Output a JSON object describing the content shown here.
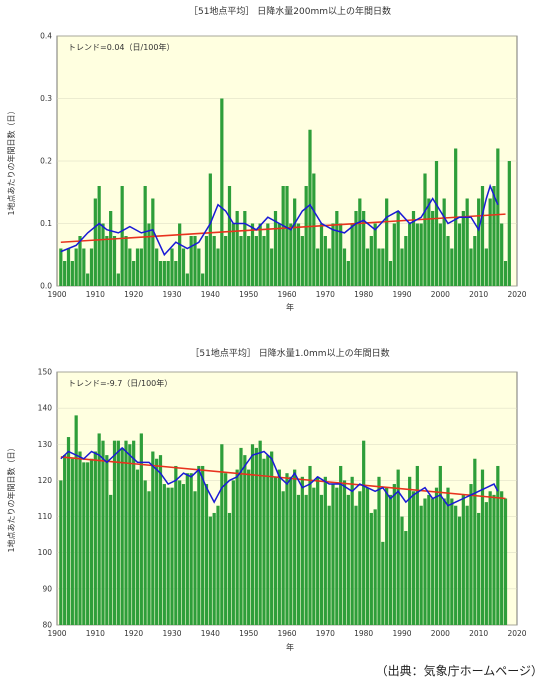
{
  "source": "（出典：気象庁ホームページ）",
  "chart_data": [
    {
      "type": "bar",
      "title": "［51地点平均］ 日降水量200mm以上の年間日数",
      "ylabel": "1地点あたりの年間日数（日）",
      "xlabel": "年",
      "annotation": "トレンド=0.04（日/100年）",
      "xlim": [
        1900,
        2020
      ],
      "ylim": [
        0,
        0.4
      ],
      "xticks": [
        "1900",
        "1910",
        "1920",
        "1930",
        "1940",
        "1950",
        "1960",
        "1970",
        "1980",
        "1990",
        "2000",
        "2010",
        "2020"
      ],
      "yticks": [
        "0.0",
        "0.1",
        "0.2",
        "0.3",
        "0.4"
      ],
      "x_start": 1901,
      "values": [
        0.06,
        0.04,
        0.06,
        0.04,
        0.06,
        0.08,
        0.06,
        0.02,
        0.06,
        0.14,
        0.16,
        0.1,
        0.08,
        0.12,
        0.08,
        0.02,
        0.16,
        0.08,
        0.06,
        0.04,
        0.06,
        0.06,
        0.16,
        0.1,
        0.14,
        0.06,
        0.04,
        0.04,
        0.04,
        0.06,
        0.04,
        0.1,
        0.06,
        0.02,
        0.08,
        0.08,
        0.06,
        0.02,
        0.08,
        0.18,
        0.08,
        0.06,
        0.3,
        0.08,
        0.16,
        0.1,
        0.12,
        0.08,
        0.12,
        0.08,
        0.1,
        0.08,
        0.1,
        0.08,
        0.1,
        0.06,
        0.12,
        0.1,
        0.16,
        0.16,
        0.1,
        0.14,
        0.1,
        0.08,
        0.16,
        0.25,
        0.18,
        0.06,
        0.1,
        0.08,
        0.06,
        0.1,
        0.12,
        0.1,
        0.06,
        0.04,
        0.1,
        0.12,
        0.14,
        0.12,
        0.06,
        0.08,
        0.1,
        0.06,
        0.06,
        0.14,
        0.04,
        0.1,
        0.12,
        0.06,
        0.08,
        0.1,
        0.12,
        0.1,
        0.1,
        0.18,
        0.14,
        0.12,
        0.2,
        0.1,
        0.14,
        0.08,
        0.06,
        0.22,
        0.1,
        0.12,
        0.14,
        0.06,
        0.08,
        0.14,
        0.16,
        0.06,
        0.14,
        0.16,
        0.22,
        0.1,
        0.04,
        0.2
      ],
      "moving_average": [
        [
          1901,
          0.055
        ],
        [
          1905,
          0.065
        ],
        [
          1908,
          0.085
        ],
        [
          1911,
          0.1
        ],
        [
          1913,
          0.09
        ],
        [
          1916,
          0.085
        ],
        [
          1919,
          0.095
        ],
        [
          1922,
          0.085
        ],
        [
          1925,
          0.09
        ],
        [
          1928,
          0.05
        ],
        [
          1931,
          0.07
        ],
        [
          1934,
          0.06
        ],
        [
          1937,
          0.07
        ],
        [
          1940,
          0.1
        ],
        [
          1942,
          0.13
        ],
        [
          1944,
          0.12
        ],
        [
          1946,
          0.1
        ],
        [
          1949,
          0.1
        ],
        [
          1952,
          0.09
        ],
        [
          1955,
          0.11
        ],
        [
          1958,
          0.1
        ],
        [
          1961,
          0.09
        ],
        [
          1964,
          0.12
        ],
        [
          1966,
          0.13
        ],
        [
          1969,
          0.1
        ],
        [
          1972,
          0.09
        ],
        [
          1975,
          0.085
        ],
        [
          1978,
          0.1
        ],
        [
          1980,
          0.105
        ],
        [
          1983,
          0.09
        ],
        [
          1986,
          0.11
        ],
        [
          1989,
          0.12
        ],
        [
          1992,
          0.1
        ],
        [
          1995,
          0.11
        ],
        [
          1998,
          0.14
        ],
        [
          2000,
          0.12
        ],
        [
          2002,
          0.1
        ],
        [
          2005,
          0.11
        ],
        [
          2008,
          0.11
        ],
        [
          2010,
          0.09
        ],
        [
          2012,
          0.14
        ],
        [
          2013,
          0.16
        ],
        [
          2015,
          0.13
        ]
      ],
      "trend": [
        [
          1901,
          0.07
        ],
        [
          2017,
          0.115
        ]
      ],
      "colors": {
        "bars": "#2e9e3a",
        "moving_average": "#1a1ad6",
        "trend": "#e8321e",
        "plot_bg": "#ffffe0"
      }
    },
    {
      "type": "bar",
      "title": "［51地点平均］ 日降水量1.0mm以上の年間日数",
      "ylabel": "1地点あたりの年間日数（日）",
      "xlabel": "年",
      "annotation": "トレンド=-9.7（日/100年）",
      "xlim": [
        1900,
        2020
      ],
      "ylim": [
        80,
        150
      ],
      "xticks": [
        "1900",
        "1910",
        "1920",
        "1930",
        "1940",
        "1950",
        "1960",
        "1970",
        "1980",
        "1990",
        "2000",
        "2010",
        "2020"
      ],
      "yticks": [
        "80",
        "90",
        "100",
        "110",
        "120",
        "130",
        "140",
        "150"
      ],
      "x_start": 1901,
      "values": [
        120,
        127,
        132,
        126,
        138,
        128,
        125,
        125,
        126,
        128,
        133,
        131,
        127,
        116,
        131,
        131,
        129,
        131,
        130,
        131,
        123,
        133,
        120,
        117,
        128,
        126,
        127,
        119,
        118,
        118,
        124,
        120,
        119,
        122,
        122,
        117,
        124,
        124,
        119,
        110,
        111,
        113,
        130,
        122,
        111,
        120,
        123,
        129,
        127,
        123,
        130,
        129,
        131,
        126,
        127,
        128,
        121,
        123,
        117,
        122,
        121,
        123,
        116,
        121,
        116,
        124,
        118,
        121,
        116,
        121,
        113,
        119,
        118,
        124,
        120,
        116,
        121,
        113,
        117,
        131,
        118,
        111,
        112,
        121,
        103,
        118,
        116,
        119,
        123,
        110,
        106,
        121,
        117,
        124,
        113,
        115,
        116,
        115,
        118,
        124,
        115,
        118,
        115,
        113,
        110,
        116,
        113,
        119,
        126,
        111,
        123,
        114,
        117,
        116,
        124,
        117,
        115
      ],
      "moving_average": [
        [
          1901,
          126
        ],
        [
          1903,
          128
        ],
        [
          1905,
          127
        ],
        [
          1907,
          126
        ],
        [
          1909,
          128
        ],
        [
          1911,
          127
        ],
        [
          1913,
          125
        ],
        [
          1915,
          127
        ],
        [
          1917,
          129
        ],
        [
          1919,
          127
        ],
        [
          1921,
          125
        ],
        [
          1924,
          125
        ],
        [
          1927,
          122
        ],
        [
          1929,
          119
        ],
        [
          1931,
          120
        ],
        [
          1933,
          122
        ],
        [
          1935,
          121
        ],
        [
          1937,
          123
        ],
        [
          1939,
          118
        ],
        [
          1941,
          114
        ],
        [
          1943,
          118
        ],
        [
          1945,
          120
        ],
        [
          1947,
          121
        ],
        [
          1949,
          124
        ],
        [
          1951,
          127
        ],
        [
          1954,
          128
        ],
        [
          1956,
          126
        ],
        [
          1958,
          121
        ],
        [
          1960,
          119
        ],
        [
          1962,
          122
        ],
        [
          1964,
          118
        ],
        [
          1966,
          119
        ],
        [
          1968,
          121
        ],
        [
          1971,
          119
        ],
        [
          1974,
          119
        ],
        [
          1977,
          117
        ],
        [
          1979,
          119
        ],
        [
          1981,
          118
        ],
        [
          1983,
          117
        ],
        [
          1985,
          118
        ],
        [
          1987,
          115
        ],
        [
          1989,
          117
        ],
        [
          1991,
          114
        ],
        [
          1993,
          116
        ],
        [
          1996,
          118
        ],
        [
          1998,
          115
        ],
        [
          2000,
          116
        ],
        [
          2002,
          113
        ],
        [
          2004,
          114
        ],
        [
          2006,
          115
        ],
        [
          2008,
          116
        ],
        [
          2010,
          117
        ],
        [
          2012,
          118
        ],
        [
          2014,
          119
        ],
        [
          2015,
          117
        ]
      ],
      "trend": [
        [
          1901,
          126.5
        ],
        [
          2017,
          115
        ]
      ],
      "colors": {
        "bars": "#2e9e3a",
        "moving_average": "#1a1ad6",
        "trend": "#e8321e",
        "plot_bg": "#ffffe0"
      }
    }
  ]
}
